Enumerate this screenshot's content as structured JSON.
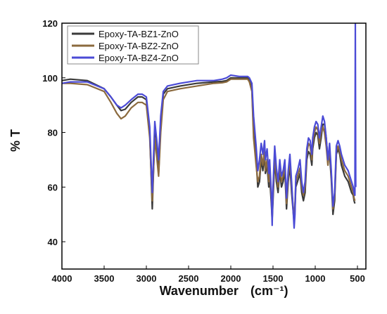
{
  "chart_data": {
    "type": "line",
    "title": "",
    "xlabel": "Wavenumber",
    "xlabel_unit": "(cm⁻¹)",
    "ylabel": "% T",
    "xlim": [
      4000,
      400
    ],
    "ylim": [
      30,
      120
    ],
    "x_reversed": true,
    "grid": false,
    "legend_position": "top-left",
    "x_ticks": [
      "4000",
      "3500",
      "3000",
      "2500",
      "2000",
      "1500",
      "1000",
      "500"
    ],
    "y_ticks": [
      "40",
      "60",
      "80",
      "100",
      "120"
    ],
    "x_tick_values": [
      4000,
      3500,
      3000,
      2500,
      2000,
      1500,
      1000,
      500
    ],
    "y_tick_values": [
      40,
      60,
      80,
      100,
      120
    ],
    "series": [
      {
        "name": "Epoxy-TA-BZ1-ZnO",
        "color": "#3a3a3a",
        "x": [
          4000,
          3900,
          3700,
          3500,
          3420,
          3350,
          3300,
          3250,
          3180,
          3100,
          3050,
          3000,
          2960,
          2930,
          2900,
          2880,
          2855,
          2830,
          2800,
          2750,
          2600,
          2400,
          2200,
          2100,
          2050,
          2000,
          1900,
          1800,
          1780,
          1750,
          1730,
          1700,
          1680,
          1660,
          1640,
          1620,
          1600,
          1590,
          1570,
          1550,
          1540,
          1520,
          1510,
          1500,
          1480,
          1460,
          1440,
          1420,
          1400,
          1380,
          1360,
          1340,
          1320,
          1300,
          1280,
          1250,
          1240,
          1230,
          1210,
          1180,
          1160,
          1140,
          1120,
          1100,
          1080,
          1060,
          1040,
          1030,
          1010,
          990,
          970,
          950,
          930,
          910,
          890,
          870,
          850,
          830,
          810,
          790,
          770,
          750,
          730,
          710,
          690,
          670,
          650,
          630,
          610,
          590,
          570,
          550,
          540,
          530
        ],
        "y": [
          99,
          99.5,
          99,
          96,
          93,
          90,
          88,
          88.5,
          91,
          93,
          93,
          92,
          80,
          52,
          80,
          74,
          65,
          82,
          94,
          96,
          97,
          98,
          98.5,
          98.7,
          99,
          100,
          100,
          100,
          99,
          96,
          80,
          70,
          60,
          62,
          70,
          66,
          72,
          65,
          68,
          60,
          64,
          54,
          48,
          55,
          70,
          62,
          58,
          66,
          60,
          62,
          66,
          52,
          62,
          68,
          58,
          47,
          52,
          60,
          62,
          65,
          58,
          55,
          58,
          70,
          73,
          72,
          68,
          74,
          78,
          80,
          79,
          74,
          78,
          83,
          83,
          78,
          70,
          72,
          63,
          50,
          55,
          72,
          74,
          72,
          68,
          66,
          64,
          63,
          62,
          60,
          58,
          57,
          55,
          54
        ]
      },
      {
        "name": "Epoxy-TA-BZ2-ZnO",
        "color": "#8b6a3e",
        "x": [
          4000,
          3900,
          3700,
          3500,
          3420,
          3350,
          3300,
          3250,
          3180,
          3100,
          3050,
          3000,
          2960,
          2930,
          2900,
          2880,
          2855,
          2830,
          2800,
          2750,
          2600,
          2400,
          2200,
          2100,
          2050,
          2000,
          1900,
          1800,
          1780,
          1750,
          1730,
          1700,
          1680,
          1660,
          1640,
          1620,
          1600,
          1590,
          1570,
          1550,
          1540,
          1520,
          1510,
          1500,
          1480,
          1460,
          1440,
          1420,
          1400,
          1380,
          1360,
          1340,
          1320,
          1300,
          1280,
          1250,
          1240,
          1230,
          1210,
          1180,
          1160,
          1140,
          1120,
          1100,
          1080,
          1060,
          1040,
          1030,
          1010,
          990,
          970,
          950,
          930,
          910,
          890,
          870,
          850,
          830,
          810,
          790,
          770,
          750,
          730,
          710,
          690,
          670,
          650,
          630,
          610,
          590,
          570,
          550,
          540,
          530
        ],
        "y": [
          98,
          98,
          97.5,
          95,
          91,
          87,
          85,
          86,
          89,
          91,
          91,
          90,
          78,
          55,
          78,
          72,
          64,
          80,
          92,
          95,
          96,
          97,
          98,
          98.2,
          98.5,
          99.5,
          99.5,
          99.5,
          98.5,
          95,
          78,
          68,
          62,
          64,
          72,
          68,
          74,
          66,
          70,
          62,
          66,
          56,
          50,
          57,
          72,
          64,
          60,
          68,
          62,
          64,
          68,
          54,
          64,
          70,
          60,
          48,
          54,
          62,
          64,
          67,
          60,
          57,
          60,
          72,
          76,
          75,
          70,
          76,
          80,
          82,
          81,
          76,
          80,
          82,
          80,
          75,
          68,
          74,
          65,
          52,
          57,
          73,
          75,
          73,
          70,
          68,
          66,
          65,
          64,
          62,
          60,
          58,
          56,
          55
        ]
      },
      {
        "name": "Epoxy-TA-BZ4-ZnO",
        "color": "#4b4bd6",
        "x": [
          4000,
          3900,
          3700,
          3500,
          3420,
          3350,
          3300,
          3250,
          3180,
          3100,
          3050,
          3000,
          2960,
          2930,
          2900,
          2880,
          2855,
          2830,
          2800,
          2750,
          2600,
          2400,
          2200,
          2100,
          2050,
          2000,
          1900,
          1800,
          1780,
          1750,
          1730,
          1700,
          1680,
          1660,
          1640,
          1620,
          1600,
          1590,
          1570,
          1550,
          1540,
          1520,
          1510,
          1500,
          1480,
          1460,
          1440,
          1420,
          1400,
          1380,
          1360,
          1340,
          1320,
          1300,
          1280,
          1250,
          1240,
          1230,
          1210,
          1180,
          1160,
          1140,
          1120,
          1100,
          1080,
          1060,
          1040,
          1030,
          1010,
          990,
          970,
          950,
          930,
          910,
          890,
          870,
          850,
          830,
          810,
          790,
          770,
          750,
          730,
          710,
          690,
          670,
          650,
          630,
          610,
          590,
          570,
          550,
          540,
          530,
          525,
          520
        ],
        "y": [
          98,
          98.5,
          98.5,
          96,
          93,
          90,
          89,
          90,
          92,
          94,
          94,
          93,
          82,
          58,
          84,
          78,
          70,
          86,
          95,
          97,
          98,
          99,
          99,
          99.5,
          100,
          101,
          100.5,
          100.5,
          100,
          98,
          86,
          75,
          66,
          70,
          76,
          72,
          77,
          70,
          74,
          65,
          70,
          58,
          46,
          60,
          75,
          67,
          62,
          70,
          64,
          66,
          70,
          56,
          66,
          72,
          62,
          45,
          50,
          64,
          66,
          70,
          62,
          58,
          62,
          74,
          78,
          77,
          72,
          78,
          82,
          84,
          83,
          78,
          82,
          86,
          84,
          78,
          70,
          76,
          66,
          53,
          58,
          75,
          77,
          75,
          72,
          70,
          68,
          67,
          66,
          64,
          62,
          60,
          58,
          57,
          120,
          60
        ]
      }
    ]
  }
}
